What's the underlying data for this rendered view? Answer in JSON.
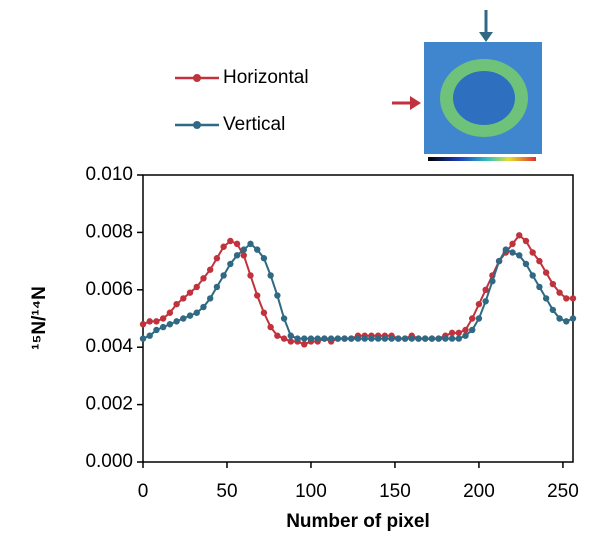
{
  "chart_data": {
    "type": "line",
    "x_label": "Number of pixel",
    "y_label": "¹⁵N/¹⁴N",
    "x": [
      0,
      4,
      8,
      12,
      16,
      20,
      24,
      28,
      32,
      36,
      40,
      44,
      48,
      52,
      56,
      60,
      64,
      68,
      72,
      76,
      80,
      84,
      88,
      92,
      96,
      100,
      104,
      108,
      112,
      116,
      120,
      124,
      128,
      132,
      136,
      140,
      144,
      148,
      152,
      156,
      160,
      164,
      168,
      172,
      176,
      180,
      184,
      188,
      192,
      196,
      200,
      204,
      208,
      212,
      216,
      220,
      224,
      228,
      232,
      236,
      240,
      244,
      248,
      252,
      256
    ],
    "series": [
      {
        "name": "Horizontal",
        "color": "#c0323c",
        "values": [
          0.0048,
          0.0049,
          0.0049,
          0.005,
          0.0052,
          0.0055,
          0.0057,
          0.0059,
          0.0061,
          0.0064,
          0.0067,
          0.0071,
          0.0075,
          0.0077,
          0.0076,
          0.0072,
          0.0065,
          0.0058,
          0.0052,
          0.0047,
          0.0044,
          0.0043,
          0.0042,
          0.0042,
          0.0041,
          0.0042,
          0.0042,
          0.0043,
          0.0042,
          0.0043,
          0.0043,
          0.0043,
          0.0044,
          0.0044,
          0.0044,
          0.0044,
          0.0044,
          0.0044,
          0.0043,
          0.0043,
          0.0044,
          0.0043,
          0.0043,
          0.0043,
          0.0043,
          0.0044,
          0.0045,
          0.0045,
          0.0046,
          0.005,
          0.0055,
          0.006,
          0.0065,
          0.007,
          0.0073,
          0.0076,
          0.0079,
          0.0077,
          0.0073,
          0.007,
          0.0066,
          0.0062,
          0.0059,
          0.0057,
          0.0057
        ]
      },
      {
        "name": "Vertical",
        "color": "#2f6983",
        "values": [
          0.0043,
          0.0044,
          0.0046,
          0.0047,
          0.0048,
          0.0049,
          0.005,
          0.0051,
          0.0052,
          0.0054,
          0.0057,
          0.0061,
          0.0065,
          0.0069,
          0.0072,
          0.0074,
          0.0076,
          0.0074,
          0.0071,
          0.0065,
          0.0058,
          0.005,
          0.0044,
          0.0043,
          0.0043,
          0.0043,
          0.0043,
          0.0043,
          0.0043,
          0.0043,
          0.0043,
          0.0043,
          0.0043,
          0.0043,
          0.0043,
          0.0043,
          0.0043,
          0.0043,
          0.0043,
          0.0043,
          0.0043,
          0.0043,
          0.0043,
          0.0043,
          0.0043,
          0.0043,
          0.0043,
          0.0043,
          0.0044,
          0.0046,
          0.005,
          0.0056,
          0.0063,
          0.007,
          0.0074,
          0.0073,
          0.0072,
          0.0069,
          0.0065,
          0.0061,
          0.0057,
          0.0053,
          0.005,
          0.0049,
          0.005
        ]
      }
    ],
    "xlim": [
      0,
      256
    ],
    "xticks": [
      0,
      50,
      100,
      150,
      200,
      250
    ],
    "ylim": [
      0,
      0.01
    ],
    "yticks": [
      {
        "value": 0,
        "label": "0.000"
      },
      {
        "value": 0.002,
        "label": "0.002"
      },
      {
        "value": 0.004,
        "label": "0.004"
      },
      {
        "value": 0.006,
        "label": "0.006"
      },
      {
        "value": 0.008,
        "label": "0.008"
      },
      {
        "value": 0.01,
        "label": "0.010"
      }
    ],
    "legend": "top-left"
  }
}
